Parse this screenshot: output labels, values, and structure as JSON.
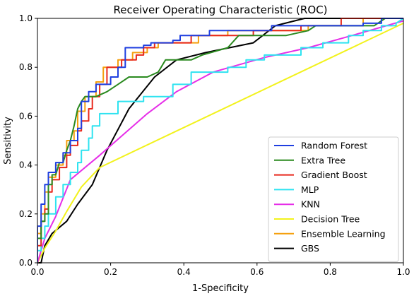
{
  "chart_data": {
    "type": "line",
    "title": "Receiver Operating Characteristic (ROC)",
    "xlabel": "1-Specificity",
    "ylabel": "Sensitivity",
    "xlim": [
      0.0,
      1.0
    ],
    "ylim": [
      0.0,
      1.0
    ],
    "xticks": [
      "0.0",
      "0.2",
      "0.4",
      "0.6",
      "0.8",
      "1.0"
    ],
    "yticks": [
      "0.0",
      "0.2",
      "0.4",
      "0.6",
      "0.8",
      "1.0"
    ],
    "grid": false,
    "legend_position": "lower-right",
    "series": [
      {
        "name": "Random Forest",
        "color": "#1f3fe0",
        "points": [
          [
            0,
            0
          ],
          [
            0,
            0.15
          ],
          [
            0.01,
            0.15
          ],
          [
            0.01,
            0.24
          ],
          [
            0.02,
            0.24
          ],
          [
            0.02,
            0.32
          ],
          [
            0.03,
            0.32
          ],
          [
            0.03,
            0.37
          ],
          [
            0.05,
            0.37
          ],
          [
            0.05,
            0.41
          ],
          [
            0.07,
            0.41
          ],
          [
            0.07,
            0.45
          ],
          [
            0.09,
            0.45
          ],
          [
            0.09,
            0.5
          ],
          [
            0.11,
            0.5
          ],
          [
            0.11,
            0.55
          ],
          [
            0.12,
            0.55
          ],
          [
            0.12,
            0.66
          ],
          [
            0.14,
            0.66
          ],
          [
            0.14,
            0.7
          ],
          [
            0.16,
            0.7
          ],
          [
            0.16,
            0.73
          ],
          [
            0.2,
            0.73
          ],
          [
            0.2,
            0.76
          ],
          [
            0.22,
            0.76
          ],
          [
            0.22,
            0.8
          ],
          [
            0.24,
            0.8
          ],
          [
            0.24,
            0.88
          ],
          [
            0.29,
            0.88
          ],
          [
            0.29,
            0.89
          ],
          [
            0.31,
            0.89
          ],
          [
            0.31,
            0.9
          ],
          [
            0.37,
            0.9
          ],
          [
            0.37,
            0.91
          ],
          [
            0.39,
            0.91
          ],
          [
            0.39,
            0.93
          ],
          [
            0.47,
            0.93
          ],
          [
            0.47,
            0.95
          ],
          [
            0.64,
            0.95
          ],
          [
            0.64,
            0.97
          ],
          [
            0.89,
            0.97
          ],
          [
            0.89,
            0.98
          ],
          [
            0.94,
            0.98
          ],
          [
            0.94,
            1.0
          ],
          [
            1.0,
            1.0
          ]
        ]
      },
      {
        "name": "Extra Tree",
        "color": "#2a8a1f",
        "points": [
          [
            0,
            0
          ],
          [
            0,
            0.1
          ],
          [
            0.01,
            0.1
          ],
          [
            0.01,
            0.17
          ],
          [
            0.02,
            0.17
          ],
          [
            0.02,
            0.2
          ],
          [
            0.03,
            0.2
          ],
          [
            0.03,
            0.32
          ],
          [
            0.04,
            0.32
          ],
          [
            0.04,
            0.36
          ],
          [
            0.05,
            0.36
          ],
          [
            0.06,
            0.41
          ],
          [
            0.07,
            0.41
          ],
          [
            0.08,
            0.46
          ],
          [
            0.09,
            0.5
          ],
          [
            0.1,
            0.56
          ],
          [
            0.11,
            0.63
          ],
          [
            0.12,
            0.66
          ],
          [
            0.13,
            0.68
          ],
          [
            0.16,
            0.68
          ],
          [
            0.19,
            0.7
          ],
          [
            0.22,
            0.73
          ],
          [
            0.25,
            0.76
          ],
          [
            0.3,
            0.76
          ],
          [
            0.33,
            0.78
          ],
          [
            0.35,
            0.83
          ],
          [
            0.42,
            0.83
          ],
          [
            0.45,
            0.85
          ],
          [
            0.52,
            0.88
          ],
          [
            0.55,
            0.93
          ],
          [
            0.68,
            0.93
          ],
          [
            0.74,
            0.95
          ],
          [
            0.76,
            0.97
          ],
          [
            0.92,
            0.97
          ],
          [
            0.95,
            1.0
          ],
          [
            1.0,
            1.0
          ]
        ]
      },
      {
        "name": "Gradient Boost",
        "color": "#e8281c",
        "points": [
          [
            0,
            0
          ],
          [
            0,
            0.07
          ],
          [
            0.01,
            0.07
          ],
          [
            0.01,
            0.17
          ],
          [
            0.02,
            0.17
          ],
          [
            0.02,
            0.22
          ],
          [
            0.03,
            0.22
          ],
          [
            0.03,
            0.29
          ],
          [
            0.04,
            0.29
          ],
          [
            0.04,
            0.34
          ],
          [
            0.06,
            0.34
          ],
          [
            0.06,
            0.39
          ],
          [
            0.08,
            0.39
          ],
          [
            0.08,
            0.44
          ],
          [
            0.09,
            0.44
          ],
          [
            0.09,
            0.48
          ],
          [
            0.11,
            0.48
          ],
          [
            0.11,
            0.54
          ],
          [
            0.12,
            0.54
          ],
          [
            0.12,
            0.58
          ],
          [
            0.14,
            0.58
          ],
          [
            0.14,
            0.63
          ],
          [
            0.15,
            0.63
          ],
          [
            0.15,
            0.68
          ],
          [
            0.17,
            0.68
          ],
          [
            0.17,
            0.73
          ],
          [
            0.19,
            0.73
          ],
          [
            0.19,
            0.8
          ],
          [
            0.23,
            0.8
          ],
          [
            0.23,
            0.83
          ],
          [
            0.27,
            0.83
          ],
          [
            0.27,
            0.85
          ],
          [
            0.29,
            0.85
          ],
          [
            0.29,
            0.88
          ],
          [
            0.32,
            0.88
          ],
          [
            0.32,
            0.9
          ],
          [
            0.42,
            0.9
          ],
          [
            0.42,
            0.93
          ],
          [
            0.59,
            0.93
          ],
          [
            0.59,
            0.95
          ],
          [
            0.72,
            0.95
          ],
          [
            0.72,
            0.97
          ],
          [
            0.83,
            0.97
          ],
          [
            0.83,
            1.0
          ],
          [
            1.0,
            1.0
          ]
        ]
      },
      {
        "name": "MLP",
        "color": "#2ee3f0",
        "points": [
          [
            0,
            0
          ],
          [
            0,
            0.05
          ],
          [
            0.01,
            0.05
          ],
          [
            0.01,
            0.1
          ],
          [
            0.02,
            0.1
          ],
          [
            0.02,
            0.15
          ],
          [
            0.03,
            0.15
          ],
          [
            0.03,
            0.2
          ],
          [
            0.05,
            0.2
          ],
          [
            0.05,
            0.27
          ],
          [
            0.07,
            0.27
          ],
          [
            0.07,
            0.32
          ],
          [
            0.09,
            0.32
          ],
          [
            0.09,
            0.37
          ],
          [
            0.11,
            0.37
          ],
          [
            0.11,
            0.41
          ],
          [
            0.12,
            0.41
          ],
          [
            0.12,
            0.46
          ],
          [
            0.14,
            0.46
          ],
          [
            0.14,
            0.51
          ],
          [
            0.15,
            0.51
          ],
          [
            0.15,
            0.56
          ],
          [
            0.17,
            0.56
          ],
          [
            0.17,
            0.61
          ],
          [
            0.22,
            0.61
          ],
          [
            0.22,
            0.66
          ],
          [
            0.29,
            0.66
          ],
          [
            0.29,
            0.68
          ],
          [
            0.37,
            0.68
          ],
          [
            0.37,
            0.73
          ],
          [
            0.42,
            0.73
          ],
          [
            0.42,
            0.78
          ],
          [
            0.52,
            0.78
          ],
          [
            0.52,
            0.8
          ],
          [
            0.57,
            0.8
          ],
          [
            0.57,
            0.83
          ],
          [
            0.62,
            0.83
          ],
          [
            0.62,
            0.85
          ],
          [
            0.72,
            0.85
          ],
          [
            0.72,
            0.88
          ],
          [
            0.78,
            0.88
          ],
          [
            0.78,
            0.9
          ],
          [
            0.85,
            0.9
          ],
          [
            0.85,
            0.93
          ],
          [
            0.89,
            0.93
          ],
          [
            0.89,
            0.95
          ],
          [
            0.94,
            0.95
          ],
          [
            0.94,
            0.97
          ],
          [
            0.98,
            0.97
          ],
          [
            0.98,
            0.98
          ],
          [
            1.0,
            1.0
          ]
        ]
      },
      {
        "name": "KNN",
        "color": "#e62ee8",
        "points": [
          [
            0,
            0
          ],
          [
            0.02,
            0.1
          ],
          [
            0.05,
            0.19
          ],
          [
            0.09,
            0.34
          ],
          [
            0.17,
            0.44
          ],
          [
            0.3,
            0.61
          ],
          [
            0.38,
            0.7
          ],
          [
            0.48,
            0.78
          ],
          [
            0.62,
            0.84
          ],
          [
            0.74,
            0.88
          ],
          [
            0.86,
            0.93
          ],
          [
            1.0,
            0.99
          ]
        ]
      },
      {
        "name": "Decision Tree",
        "color": "#f2f21c",
        "points": [
          [
            0,
            0
          ],
          [
            0.02,
            0.06
          ],
          [
            0.05,
            0.13
          ],
          [
            0.08,
            0.21
          ],
          [
            0.12,
            0.31
          ],
          [
            0.17,
            0.39
          ],
          [
            1.0,
            0.98
          ]
        ]
      },
      {
        "name": "Ensemble Learning",
        "color": "#f5a00f",
        "points": [
          [
            0,
            0
          ],
          [
            0,
            0.12
          ],
          [
            0.01,
            0.12
          ],
          [
            0.01,
            0.2
          ],
          [
            0.02,
            0.2
          ],
          [
            0.02,
            0.29
          ],
          [
            0.03,
            0.29
          ],
          [
            0.03,
            0.35
          ],
          [
            0.05,
            0.35
          ],
          [
            0.05,
            0.4
          ],
          [
            0.07,
            0.4
          ],
          [
            0.07,
            0.44
          ],
          [
            0.08,
            0.44
          ],
          [
            0.08,
            0.5
          ],
          [
            0.1,
            0.5
          ],
          [
            0.1,
            0.54
          ],
          [
            0.11,
            0.54
          ],
          [
            0.11,
            0.62
          ],
          [
            0.13,
            0.62
          ],
          [
            0.13,
            0.68
          ],
          [
            0.16,
            0.68
          ],
          [
            0.16,
            0.74
          ],
          [
            0.18,
            0.74
          ],
          [
            0.18,
            0.8
          ],
          [
            0.22,
            0.8
          ],
          [
            0.22,
            0.83
          ],
          [
            0.26,
            0.83
          ],
          [
            0.26,
            0.86
          ],
          [
            0.3,
            0.86
          ],
          [
            0.3,
            0.88
          ],
          [
            0.33,
            0.88
          ],
          [
            0.33,
            0.9
          ],
          [
            0.44,
            0.9
          ],
          [
            0.44,
            0.93
          ],
          [
            0.52,
            0.93
          ],
          [
            0.52,
            0.95
          ],
          [
            0.74,
            0.95
          ],
          [
            0.74,
            0.97
          ],
          [
            0.89,
            0.97
          ],
          [
            0.89,
            1.0
          ],
          [
            1.0,
            1.0
          ]
        ]
      },
      {
        "name": "GBS",
        "color": "#000000",
        "points": [
          [
            0,
            0
          ],
          [
            0.01,
            0
          ],
          [
            0.02,
            0.07
          ],
          [
            0.04,
            0.12
          ],
          [
            0.08,
            0.17
          ],
          [
            0.11,
            0.24
          ],
          [
            0.15,
            0.32
          ],
          [
            0.19,
            0.46
          ],
          [
            0.25,
            0.63
          ],
          [
            0.32,
            0.76
          ],
          [
            0.38,
            0.83
          ],
          [
            0.46,
            0.86
          ],
          [
            0.59,
            0.9
          ],
          [
            0.65,
            0.97
          ],
          [
            0.73,
            1.0
          ],
          [
            1.0,
            1.0
          ]
        ]
      }
    ]
  }
}
